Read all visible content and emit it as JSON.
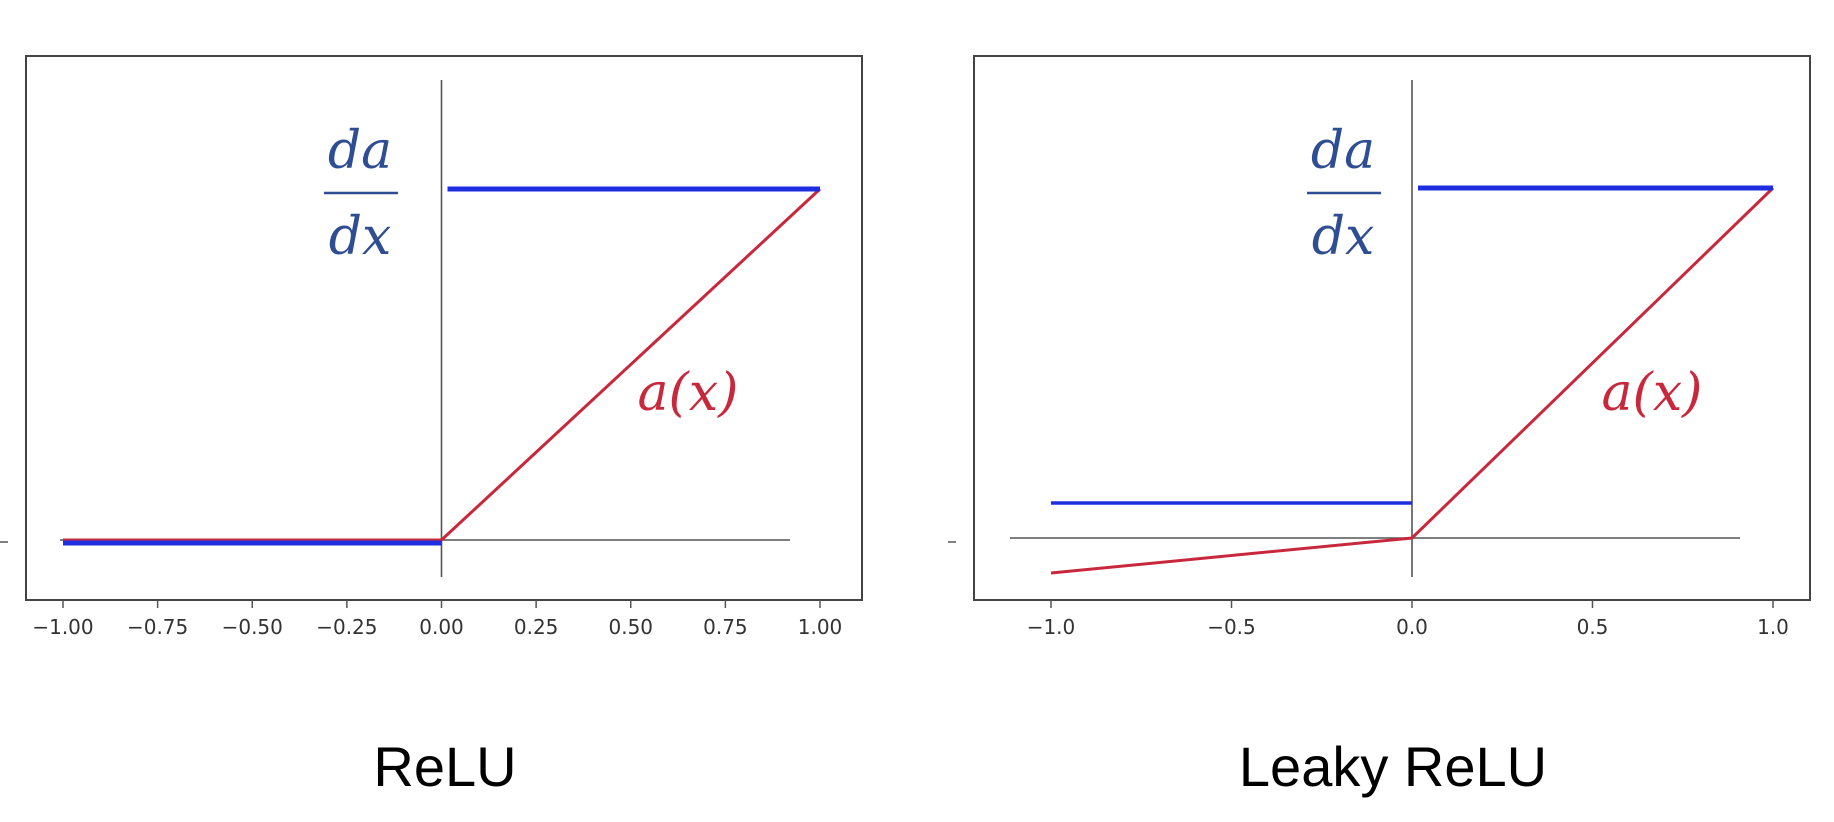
{
  "colors": {
    "activation": "#c8283c",
    "derivative": "#1f2de0",
    "math_label_blue": "#2f4d93",
    "axis": "#555555",
    "frame": "#444444"
  },
  "chart_data": [
    {
      "type": "line",
      "caption": "ReLU",
      "xlim": [
        -1.0,
        1.0
      ],
      "ylim": [
        0,
        1
      ],
      "xticks": [
        -1.0,
        -0.75,
        -0.5,
        -0.25,
        0.0,
        0.25,
        0.5,
        0.75,
        1.0
      ],
      "xtick_labels": [
        "−1.00",
        "−0.75",
        "−0.50",
        "−0.25",
        "0.00",
        "0.25",
        "0.50",
        "0.75",
        "1.00"
      ],
      "series": [
        {
          "role": "activation",
          "x": [
            -1.0,
            0.0,
            1.0
          ],
          "y": [
            0.0,
            0.0,
            1.0
          ]
        },
        {
          "role": "derivative",
          "segments": [
            {
              "x": [
                -1.0,
                0.0
              ],
              "y": [
                0.0,
                0.0
              ]
            },
            {
              "x": [
                0.0,
                1.0
              ],
              "y": [
                1.0,
                1.0
              ]
            }
          ]
        }
      ],
      "annotations": {
        "derivative_numerator": "da",
        "derivative_denominator": "dx",
        "activation_label": "a(x)"
      }
    },
    {
      "type": "line",
      "caption": "Leaky ReLU",
      "xlim": [
        -1.0,
        1.0
      ],
      "ylim": [
        -0.1,
        1
      ],
      "xticks": [
        -1.0,
        -0.5,
        0.0,
        0.5,
        1.0
      ],
      "xtick_labels": [
        "−1.0",
        "−0.5",
        "0.0",
        "0.5",
        "1.0"
      ],
      "series": [
        {
          "role": "activation",
          "x": [
            -1.0,
            0.0,
            1.0
          ],
          "y": [
            -0.1,
            0.0,
            1.0
          ]
        },
        {
          "role": "derivative",
          "segments": [
            {
              "x": [
                -1.0,
                0.0
              ],
              "y": [
                0.1,
                0.1
              ]
            },
            {
              "x": [
                0.0,
                1.0
              ],
              "y": [
                1.0,
                1.0
              ]
            }
          ]
        }
      ],
      "annotations": {
        "derivative_numerator": "da",
        "derivative_denominator": "dx",
        "activation_label": "a(x)"
      }
    }
  ]
}
